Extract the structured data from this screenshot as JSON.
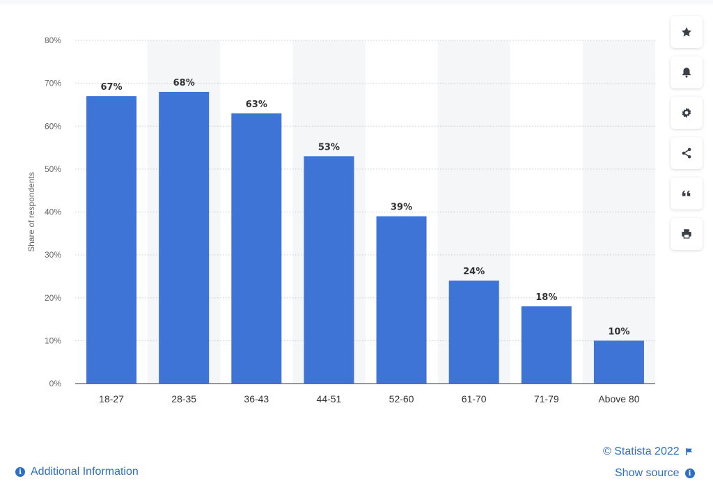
{
  "chart_data": {
    "type": "bar",
    "categories": [
      "18-27",
      "28-35",
      "36-43",
      "44-51",
      "52-60",
      "61-70",
      "71-79",
      "Above 80"
    ],
    "values": [
      67,
      68,
      63,
      53,
      39,
      24,
      18,
      10
    ],
    "value_labels": [
      "67%",
      "68%",
      "63%",
      "53%",
      "39%",
      "24%",
      "18%",
      "10%"
    ],
    "yticks": [
      "0%",
      "10%",
      "20%",
      "30%",
      "40%",
      "50%",
      "60%",
      "70%",
      "80%"
    ],
    "ylabel": "Share of respondents",
    "ylim": [
      0,
      80
    ],
    "grid": true,
    "bar_color": "#3d74d6"
  },
  "toolbar": {
    "icons": [
      "star-icon",
      "bell-icon",
      "gear-icon",
      "share-icon",
      "quote-icon",
      "print-icon"
    ]
  },
  "footer": {
    "copyright": "© Statista 2022",
    "show_source": "Show source",
    "additional_info": "Additional Information"
  }
}
